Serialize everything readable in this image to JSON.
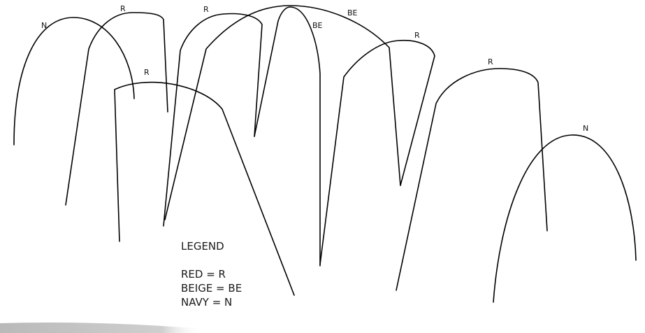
{
  "diagram": {
    "arcs": [
      {
        "label": "N"
      },
      {
        "label": "R"
      },
      {
        "label": "R"
      },
      {
        "label": "R"
      },
      {
        "label": "BE"
      },
      {
        "label": "BE"
      },
      {
        "label": "R"
      },
      {
        "label": "R"
      },
      {
        "label": "N"
      }
    ]
  },
  "legend": {
    "title": "LEGEND",
    "entries": [
      {
        "text": "RED = R"
      },
      {
        "text": "BEIGE = BE"
      },
      {
        "text": "NAVY = N"
      }
    ]
  }
}
